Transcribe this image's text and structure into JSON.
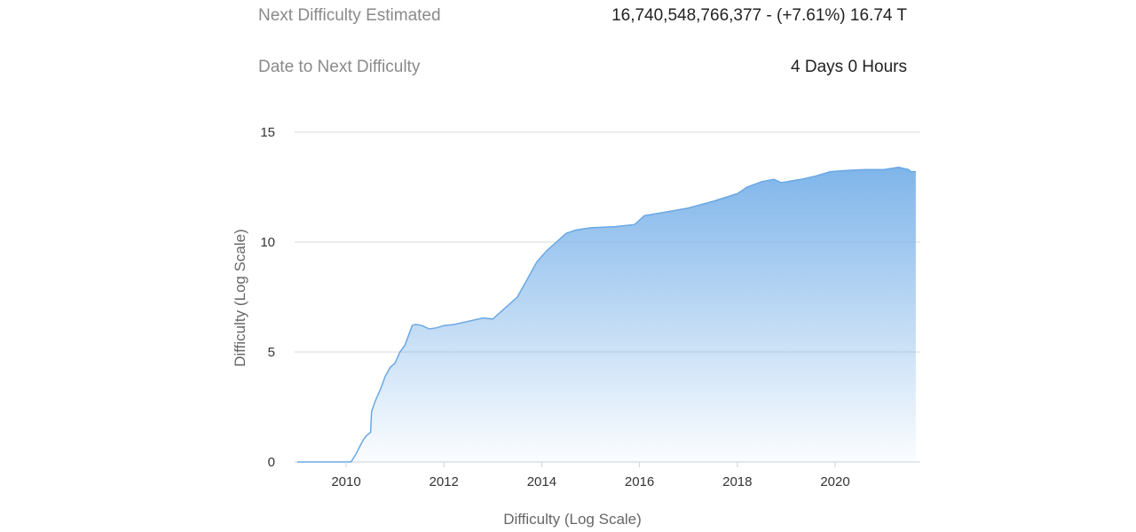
{
  "stats": {
    "next_difficulty": {
      "label": "Next Difficulty Estimated",
      "value": "16,740,548,766,377 - (+7.61%) 16.74 T"
    },
    "date_to_next": {
      "label": "Date to Next Difficulty",
      "value": "4 Days 0 Hours"
    }
  },
  "chart_data": {
    "type": "area",
    "title": "",
    "xlabel": "Difficulty (Log Scale)",
    "ylabel": "Difficulty (Log Scale)",
    "xlim": [
      2009.0,
      2021.7
    ],
    "ylim": [
      0,
      15
    ],
    "x_ticks": [
      "2010",
      "2012",
      "2014",
      "2016",
      "2018",
      "2020"
    ],
    "y_ticks": [
      "0",
      "5",
      "10",
      "15"
    ],
    "grid": true,
    "color": "#7fb5ea",
    "series": [
      {
        "x": [
          2009.0,
          2009.5,
          2010.0,
          2010.1,
          2010.2,
          2010.28,
          2010.35,
          2010.42,
          2010.5,
          2010.52,
          2010.6,
          2010.7,
          2010.8,
          2010.9,
          2011.0,
          2011.1,
          2011.2,
          2011.3,
          2011.35,
          2011.4,
          2011.45,
          2011.55,
          2011.7,
          2011.85,
          2012.0,
          2012.2,
          2012.5,
          2012.8,
          2013.0,
          2013.1,
          2013.25,
          2013.5,
          2013.7,
          2013.8,
          2013.9,
          2014.1,
          2014.3,
          2014.5,
          2014.7,
          2015.0,
          2015.5,
          2015.9,
          2016.1,
          2016.5,
          2017.0,
          2017.5,
          2018.0,
          2018.2,
          2018.5,
          2018.75,
          2018.9,
          2019.3,
          2019.6,
          2019.9,
          2020.2,
          2020.6,
          2021.0,
          2021.3,
          2021.5,
          2021.55,
          2021.65
        ],
        "y": [
          0.0,
          0.0,
          0.0,
          0.0,
          0.35,
          0.7,
          1.0,
          1.2,
          1.35,
          2.3,
          2.8,
          3.3,
          3.9,
          4.3,
          4.5,
          5.0,
          5.3,
          5.9,
          6.2,
          6.25,
          6.25,
          6.2,
          6.05,
          6.1,
          6.2,
          6.25,
          6.4,
          6.55,
          6.5,
          6.7,
          7.0,
          7.5,
          8.3,
          8.7,
          9.1,
          9.6,
          10.0,
          10.4,
          10.55,
          10.65,
          10.7,
          10.8,
          11.2,
          11.35,
          11.55,
          11.85,
          12.2,
          12.5,
          12.75,
          12.85,
          12.7,
          12.85,
          13.0,
          13.2,
          13.25,
          13.3,
          13.3,
          13.4,
          13.3,
          13.2,
          13.2
        ]
      }
    ]
  }
}
